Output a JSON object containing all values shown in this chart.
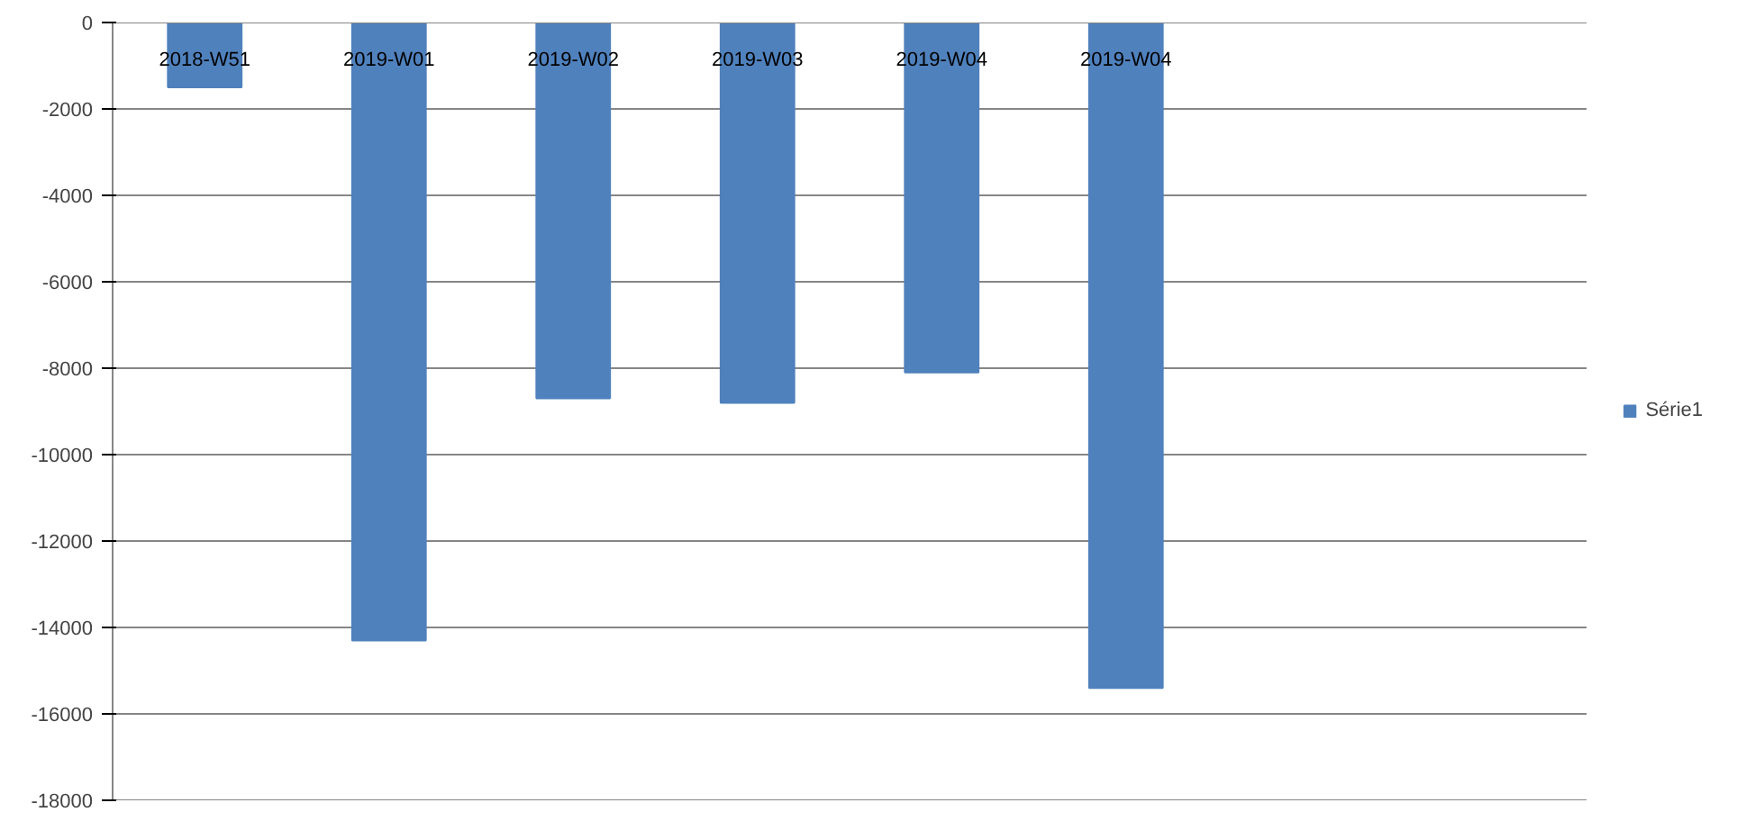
{
  "chart_data": {
    "type": "bar",
    "categories": [
      "2018-W51",
      "2019-W01",
      "2019-W02",
      "2019-W03",
      "2019-W04",
      "2019-W04",
      null,
      null
    ],
    "series": [
      {
        "name": "Série1",
        "color": "#4f81bd",
        "values": [
          -1500,
          -14300,
          -8700,
          -8800,
          -8100,
          -15400,
          null,
          null
        ]
      }
    ],
    "ylim": [
      -18000,
      0
    ],
    "yticks": [
      -18000,
      -16000,
      -14000,
      -12000,
      -10000,
      -8000,
      -6000,
      -4000,
      -2000,
      0
    ],
    "grid": "y",
    "legend": "right"
  }
}
